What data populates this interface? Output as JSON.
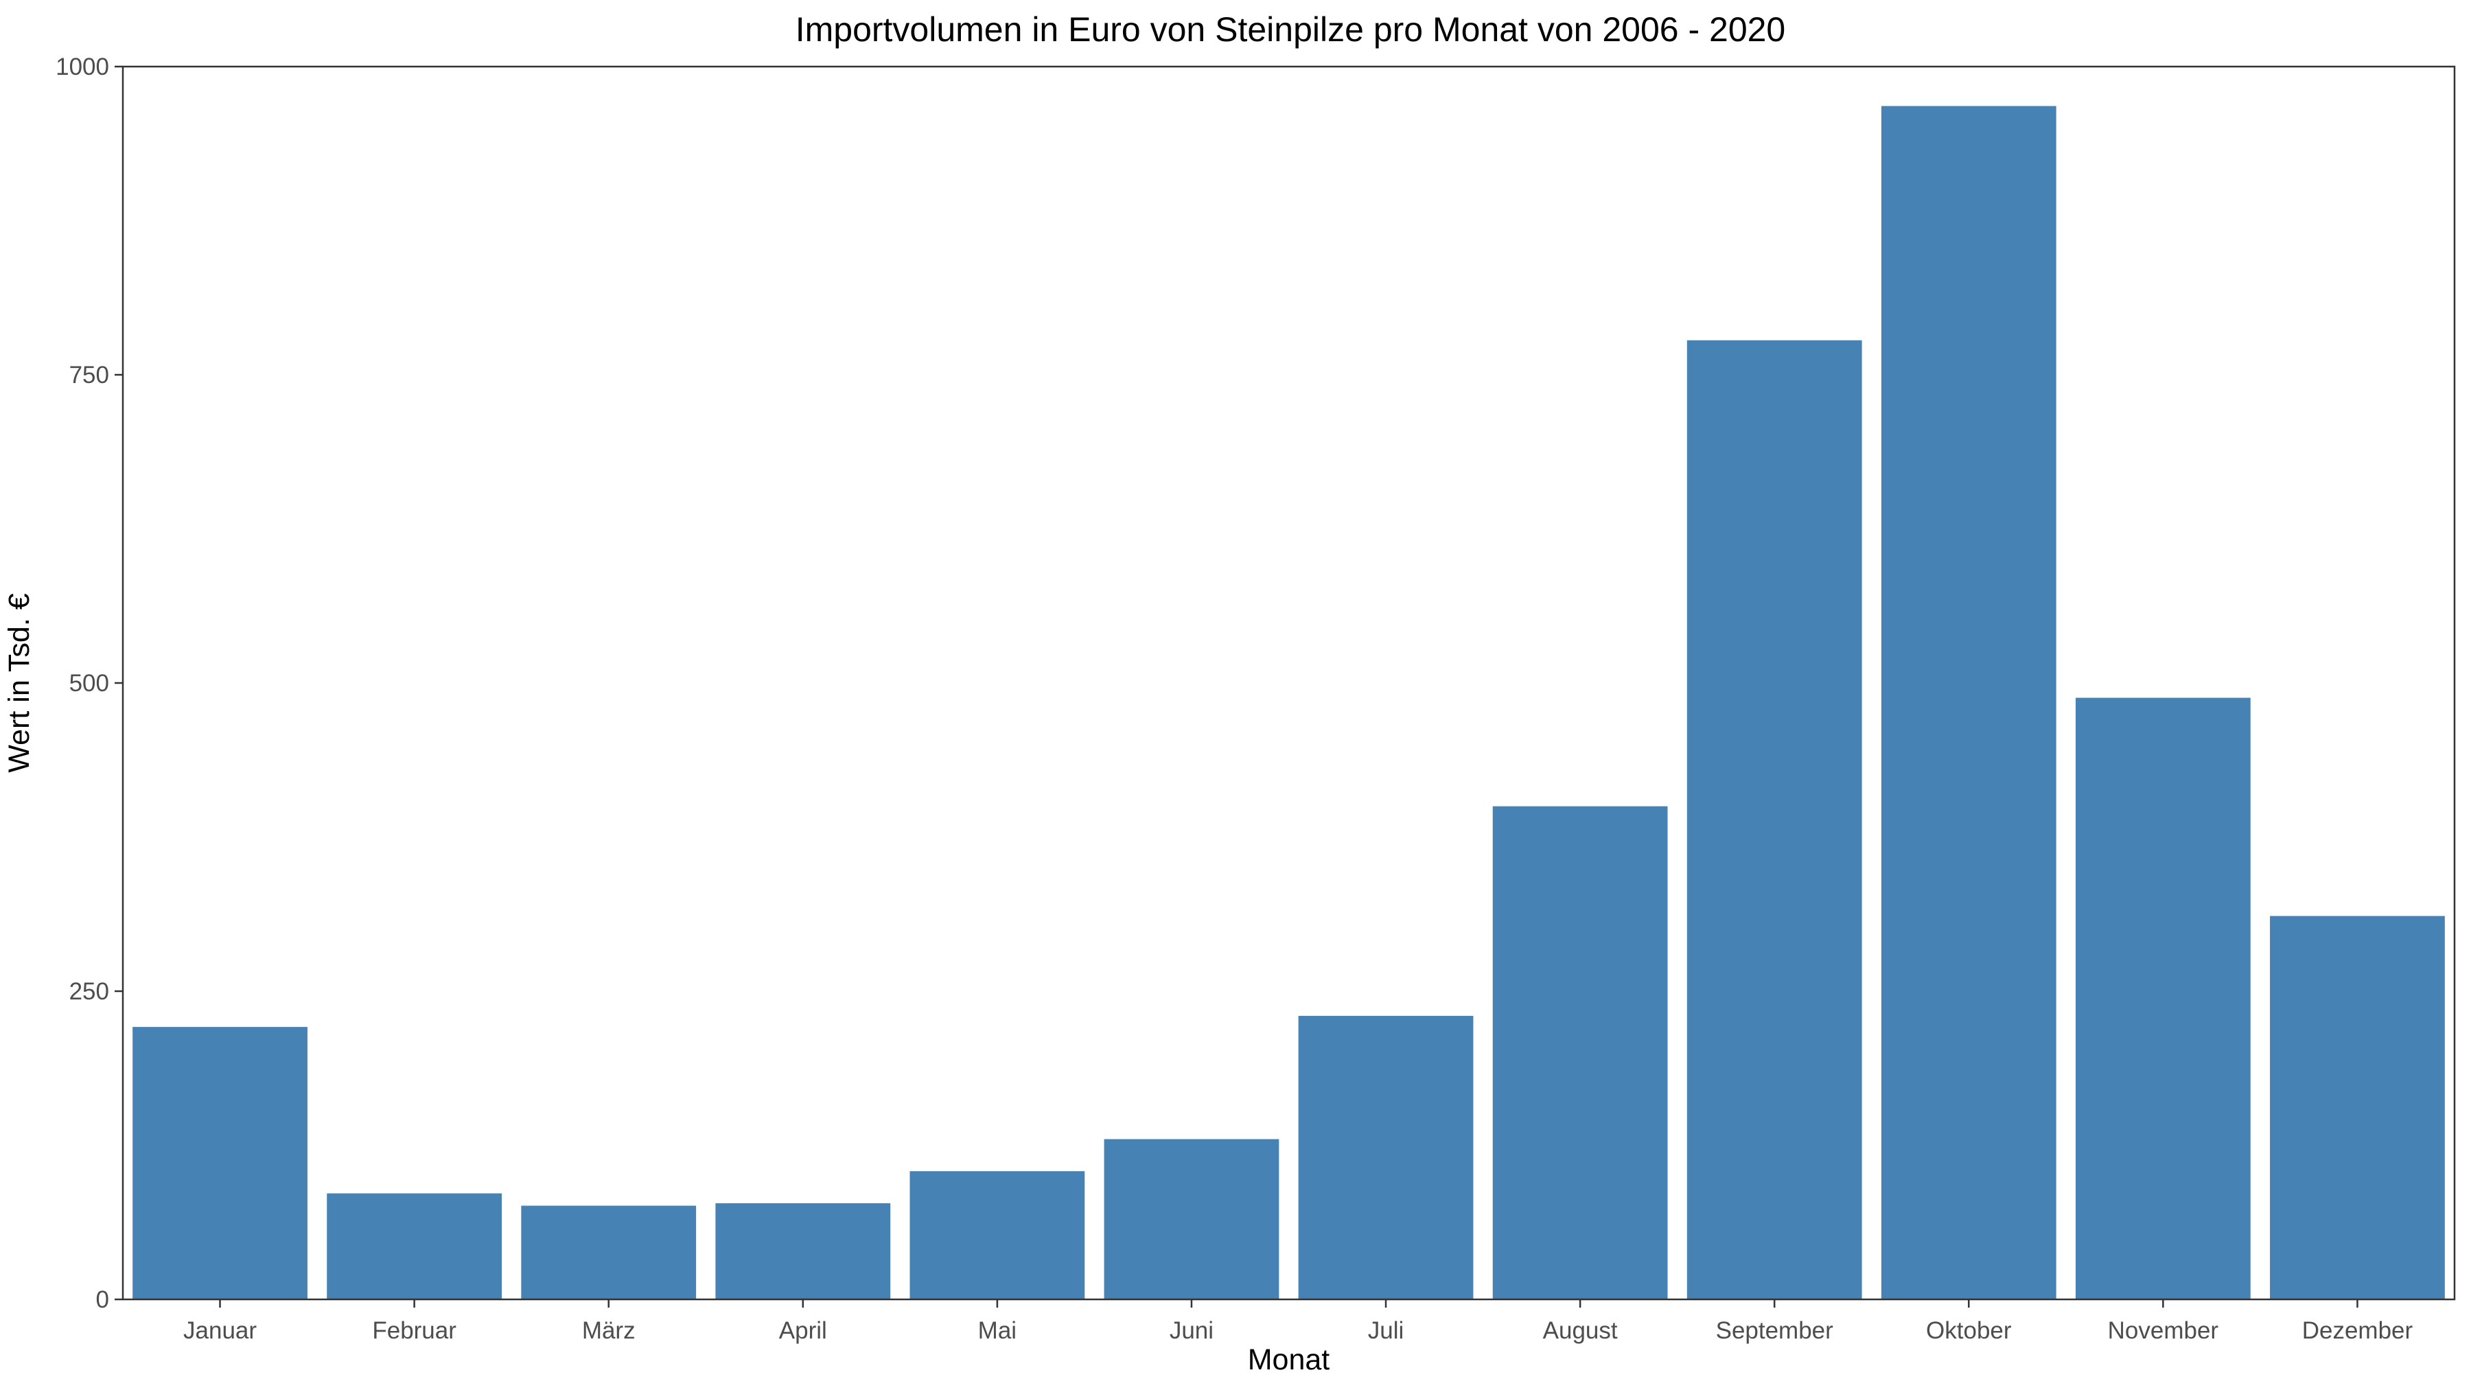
{
  "chart_data": {
    "type": "bar",
    "title": "Importvolumen in Euro von Steinpilze pro Monat von 2006 - 2020",
    "xlabel": "Monat",
    "ylabel": "Wert in Tsd. €",
    "categories": [
      "Januar",
      "Februar",
      "März",
      "April",
      "Mai",
      "Juni",
      "Juli",
      "August",
      "September",
      "Oktober",
      "November",
      "Dezember"
    ],
    "values": [
      221,
      86,
      76,
      78,
      104,
      130,
      230,
      400,
      778,
      968,
      488,
      311
    ],
    "ylim": [
      0,
      1000
    ],
    "yticks": [
      0,
      250,
      500,
      750,
      1000
    ],
    "ytick_labels": [
      "0",
      "250",
      "500",
      "750",
      "1000"
    ],
    "grid": false,
    "legend": "none",
    "colors": {
      "bar": "#4682b4",
      "panel_border": "#333333",
      "tick_text": "#4d4d4d"
    }
  }
}
